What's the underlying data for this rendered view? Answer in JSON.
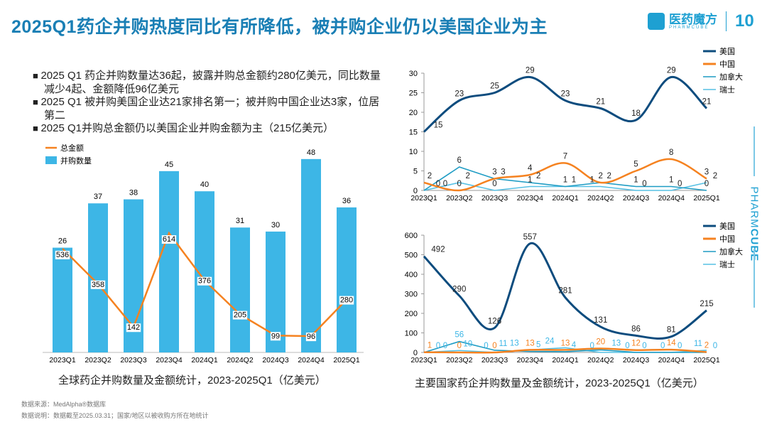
{
  "title": "2025Q1药企并购热度同比有所降低，被并购企业仍以美国企业为主",
  "logo": {
    "cn": "医药魔方",
    "en": "PHARMCUBE",
    "anniversary": "10"
  },
  "side_brand": {
    "light": "PHARM",
    "bold": "CUBE"
  },
  "bullets": [
    "2025  Q1  药企并购数量达36起，披露并购总金额约280亿美元，同比数量减少4起、金额降低96亿美元",
    "2025  Q1  被并购美国企业达21家排名第一；被并购中国企业达3家，位居第二",
    "2025 Q1并购总金额仍以美国企业并购金额为主（215亿美元）"
  ],
  "colors": {
    "title": "#1a7fb5",
    "bar": "#3db6e6",
    "amount": "#f58220",
    "us": "#0d4c7e",
    "china": "#f58220",
    "canada": "#1e9cc4",
    "switzerland": "#56c0e4"
  },
  "chart_data": [
    {
      "type": "bar",
      "caption": "全球药企并购数量及金额统计，2023-2025Q1（亿美元）",
      "categories": [
        "2023Q1",
        "2023Q2",
        "2023Q3",
        "2023Q4",
        "2024Q1",
        "2024Q2",
        "2024Q3",
        "2024Q4",
        "2025Q1"
      ],
      "legend": [
        "总金额",
        "并购数量"
      ],
      "legend_position": "top-left",
      "series": [
        {
          "name": "并购数量",
          "type": "bar",
          "values": [
            26,
            37,
            38,
            45,
            40,
            31,
            30,
            48,
            36
          ]
        },
        {
          "name": "总金额",
          "type": "line",
          "values": [
            536,
            358,
            142,
            614,
            376,
            205,
            99,
            96,
            280
          ]
        }
      ],
      "grid": false
    },
    {
      "type": "line",
      "categories": [
        "2023Q1",
        "2023Q2",
        "2023Q3",
        "2023Q4",
        "2024Q1",
        "2024Q2",
        "2024Q3",
        "2024Q4",
        "2025Q1"
      ],
      "ylim": [
        0,
        30
      ],
      "yticks": [
        0,
        5,
        10,
        15,
        20,
        25,
        30
      ],
      "legend_position": "top-right",
      "series": [
        {
          "name": "美国",
          "values": [
            15,
            23,
            25,
            29,
            23,
            21,
            18,
            29,
            21
          ]
        },
        {
          "name": "中国",
          "values": [
            2,
            0,
            3,
            4,
            7,
            2,
            5,
            8,
            3
          ]
        },
        {
          "name": "加拿大",
          "values": [
            0,
            6,
            3,
            2,
            1,
            2,
            1,
            1,
            0
          ]
        },
        {
          "name": "瑞士",
          "values": [
            0,
            2,
            0,
            1,
            1,
            1,
            0,
            0,
            2
          ]
        }
      ],
      "grid": false
    },
    {
      "type": "line",
      "caption": "主要国家药企并购数量及金额统计，2023-2025Q1（亿美元）",
      "categories": [
        "2023Q1",
        "2023Q2",
        "2023Q3",
        "2023Q4",
        "2024Q1",
        "2024Q2",
        "2024Q3",
        "2024Q4",
        "2025Q1"
      ],
      "ylim": [
        0,
        600
      ],
      "yticks": [
        0,
        100,
        200,
        300,
        400,
        500,
        600
      ],
      "legend_position": "top-right",
      "series": [
        {
          "name": "美国",
          "values": [
            492,
            290,
            126,
            557,
            281,
            131,
            86,
            81,
            215
          ]
        },
        {
          "name": "中国",
          "values": [
            1,
            0,
            0,
            13,
            13,
            20,
            12,
            14,
            2
          ]
        },
        {
          "name": "加拿大",
          "values": [
            0,
            56,
            11,
            5,
            4,
            13,
            0,
            0,
            0
          ]
        },
        {
          "name": "瑞士",
          "values": [
            0,
            10,
            0,
            13,
            24,
            0,
            0,
            0,
            11
          ]
        }
      ],
      "grid": false
    }
  ],
  "footer": {
    "source": "数据来源：MedAlpha®数据库",
    "note": "数据说明：数据截至2025.03.31；国家/地区以被收购方所在地统计"
  }
}
